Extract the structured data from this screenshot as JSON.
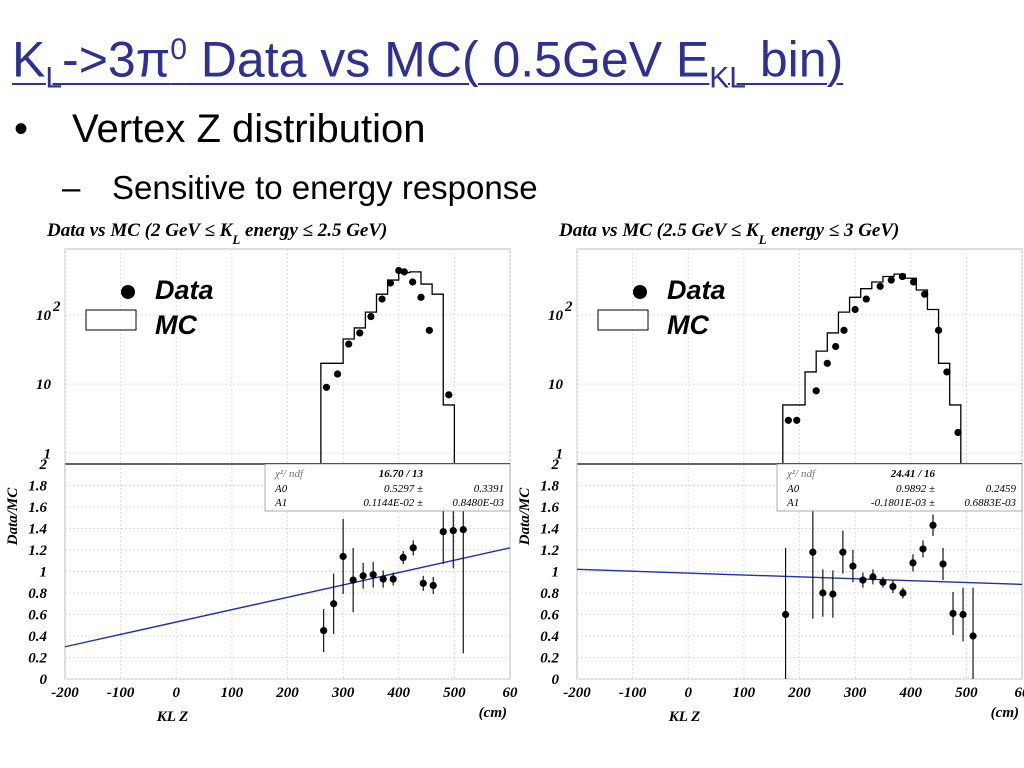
{
  "slide": {
    "title": {
      "p1": "K",
      "p1_sub": "L",
      "p2": "->3π",
      "p2_sup": "0",
      "p3": " Data vs MC( 0.5GeV E",
      "p3_sub": "KL",
      "p4": " bin)"
    },
    "bullet1": {
      "marker": "•",
      "text": "Vertex Z distribution"
    },
    "bullet2": {
      "marker": "–",
      "text": "Sensitive to energy response"
    }
  },
  "colors": {
    "title": "#2e3192",
    "fit_line": "#1f2fb0",
    "marks": "#000000"
  },
  "chart_data": [
    {
      "type": "scatter",
      "title": "Data vs MC (2 GeV ≤ K",
      "title_sub": "L",
      "title_end": " energy ≤ 2.5 GeV)",
      "legend": {
        "data": "Data",
        "mc": "MC",
        "placement": "top-left"
      },
      "xlabel": "KL Z",
      "xunit": "(cm)",
      "ylabel_ratio": "Data/MC",
      "xlim": [
        -200,
        600
      ],
      "xticks": [
        "-200",
        "-100",
        "0",
        "100",
        "200",
        "300",
        "400",
        "500",
        "60"
      ],
      "upper": {
        "yscale": "log",
        "ylim": [
          0.7,
          900
        ],
        "ytick_labels": [
          {
            "v": 100,
            "t": "10",
            "sup": "2"
          },
          {
            "v": 10,
            "t": "10"
          },
          {
            "v": 1,
            "t": "1"
          }
        ],
        "mc_histogram": {
          "bin_edges": [
            260,
            280,
            300,
            320,
            340,
            360,
            380,
            400,
            420,
            440,
            460,
            480,
            500
          ],
          "values": [
            20,
            20,
            45,
            65,
            110,
            200,
            320,
            410,
            420,
            280,
            200,
            5
          ]
        },
        "data_points": [
          {
            "x": 270,
            "y": 9
          },
          {
            "x": 290,
            "y": 14
          },
          {
            "x": 310,
            "y": 38
          },
          {
            "x": 330,
            "y": 55
          },
          {
            "x": 350,
            "y": 95
          },
          {
            "x": 370,
            "y": 170
          },
          {
            "x": 385,
            "y": 290
          },
          {
            "x": 400,
            "y": 440
          },
          {
            "x": 410,
            "y": 420
          },
          {
            "x": 425,
            "y": 300
          },
          {
            "x": 440,
            "y": 180
          },
          {
            "x": 455,
            "y": 60
          },
          {
            "x": 490,
            "y": 7
          }
        ]
      },
      "lower": {
        "ylim": [
          0,
          2
        ],
        "yticks": [
          "0",
          "0.2",
          "0.4",
          "0.6",
          "0.8",
          "1",
          "1.2",
          "1.4",
          "1.6",
          "1.8",
          "2"
        ],
        "ratio_points": [
          {
            "x": 265,
            "y": 0.45,
            "err": 0.2
          },
          {
            "x": 283,
            "y": 0.7,
            "err": 0.28
          },
          {
            "x": 300,
            "y": 1.14,
            "err": 0.35
          },
          {
            "x": 318,
            "y": 0.92,
            "err": 0.3
          },
          {
            "x": 336,
            "y": 0.96,
            "err": 0.12
          },
          {
            "x": 354,
            "y": 0.97,
            "err": 0.12
          },
          {
            "x": 372,
            "y": 0.93,
            "err": 0.08
          },
          {
            "x": 390,
            "y": 0.93,
            "err": 0.06
          },
          {
            "x": 408,
            "y": 1.13,
            "err": 0.06
          },
          {
            "x": 426,
            "y": 1.22,
            "err": 0.07
          },
          {
            "x": 444,
            "y": 0.89,
            "err": 0.07
          },
          {
            "x": 462,
            "y": 0.87,
            "err": 0.08
          },
          {
            "x": 480,
            "y": 1.37,
            "err": 0.3
          },
          {
            "x": 498,
            "y": 1.38,
            "err": 0.35
          },
          {
            "x": 516,
            "y": 1.39,
            "err": 1.15
          }
        ],
        "fit_line": {
          "x": [
            -200,
            600
          ],
          "y": [
            0.3,
            1.22
          ]
        },
        "fit_box": {
          "r1l": "χ²/ ndf",
          "r1v": "16.70   /   13",
          "r2l": "A0",
          "r2v": "0.5297 ±",
          "r2e": "0.3391",
          "r3l": "A1",
          "r3v": "0.1144E-02 ±",
          "r3e": "0.8480E-03"
        }
      }
    },
    {
      "type": "scatter",
      "title": "Data vs MC (2.5 GeV ≤ K",
      "title_sub": "L",
      "title_end": " energy ≤ 3 GeV)",
      "legend": {
        "data": "Data",
        "mc": "MC",
        "placement": "top-left"
      },
      "xlabel": "KL Z",
      "xunit": "(cm)",
      "ylabel_ratio": "Data/MC",
      "xlim": [
        -200,
        600
      ],
      "xticks": [
        "-200",
        "-100",
        "0",
        "100",
        "200",
        "300",
        "400",
        "500",
        "60"
      ],
      "upper": {
        "yscale": "log",
        "ylim": [
          0.7,
          900
        ],
        "ytick_labels": [
          {
            "v": 100,
            "t": "10",
            "sup": "2"
          },
          {
            "v": 10,
            "t": "10"
          },
          {
            "v": 1,
            "t": "1"
          }
        ],
        "mc_histogram": {
          "bin_edges": [
            170,
            190,
            210,
            230,
            250,
            270,
            290,
            310,
            330,
            350,
            370,
            390,
            410,
            430,
            450,
            470,
            490
          ],
          "values": [
            5,
            5,
            15,
            30,
            55,
            110,
            180,
            240,
            300,
            360,
            390,
            340,
            230,
            120,
            20,
            5
          ]
        },
        "data_points": [
          {
            "x": 180,
            "y": 3
          },
          {
            "x": 195,
            "y": 3
          },
          {
            "x": 230,
            "y": 8
          },
          {
            "x": 250,
            "y": 20
          },
          {
            "x": 265,
            "y": 35
          },
          {
            "x": 280,
            "y": 60
          },
          {
            "x": 300,
            "y": 120
          },
          {
            "x": 320,
            "y": 170
          },
          {
            "x": 345,
            "y": 260
          },
          {
            "x": 365,
            "y": 320
          },
          {
            "x": 385,
            "y": 360
          },
          {
            "x": 405,
            "y": 300
          },
          {
            "x": 425,
            "y": 200
          },
          {
            "x": 450,
            "y": 60
          },
          {
            "x": 465,
            "y": 15
          },
          {
            "x": 485,
            "y": 2
          }
        ]
      },
      "lower": {
        "ylim": [
          0,
          2
        ],
        "yticks": [
          "0",
          "0.2",
          "0.4",
          "0.6",
          "0.8",
          "1",
          "1.2",
          "1.4",
          "1.6",
          "1.8",
          "2"
        ],
        "ratio_points": [
          {
            "x": 175,
            "y": 0.6,
            "err": 0.62
          },
          {
            "x": 224,
            "y": 1.18,
            "err": 0.62
          },
          {
            "x": 242,
            "y": 0.8,
            "err": 0.22
          },
          {
            "x": 260,
            "y": 0.79,
            "err": 0.22
          },
          {
            "x": 278,
            "y": 1.18,
            "err": 0.2
          },
          {
            "x": 296,
            "y": 1.05,
            "err": 0.15
          },
          {
            "x": 314,
            "y": 0.92,
            "err": 0.07
          },
          {
            "x": 332,
            "y": 0.95,
            "err": 0.07
          },
          {
            "x": 350,
            "y": 0.9,
            "err": 0.05
          },
          {
            "x": 368,
            "y": 0.86,
            "err": 0.06
          },
          {
            "x": 386,
            "y": 0.8,
            "err": 0.05
          },
          {
            "x": 404,
            "y": 1.08,
            "err": 0.08
          },
          {
            "x": 422,
            "y": 1.21,
            "err": 0.08
          },
          {
            "x": 440,
            "y": 1.43,
            "err": 0.1
          },
          {
            "x": 458,
            "y": 1.07,
            "err": 0.15
          },
          {
            "x": 476,
            "y": 0.61,
            "err": 0.2
          },
          {
            "x": 494,
            "y": 0.6,
            "err": 0.25
          },
          {
            "x": 512,
            "y": 0.4,
            "err": 0.45
          }
        ],
        "fit_line": {
          "x": [
            -200,
            600
          ],
          "y": [
            1.02,
            0.88
          ]
        },
        "fit_box": {
          "r1l": "χ²/ ndf",
          "r1v": "24.41   /   16",
          "r2l": "A0",
          "r2v": "0.9892 ±",
          "r2e": "0.2459",
          "r3l": "A1",
          "r3v": "-0.1801E-03 ±",
          "r3e": "0.6883E-03"
        }
      }
    }
  ]
}
